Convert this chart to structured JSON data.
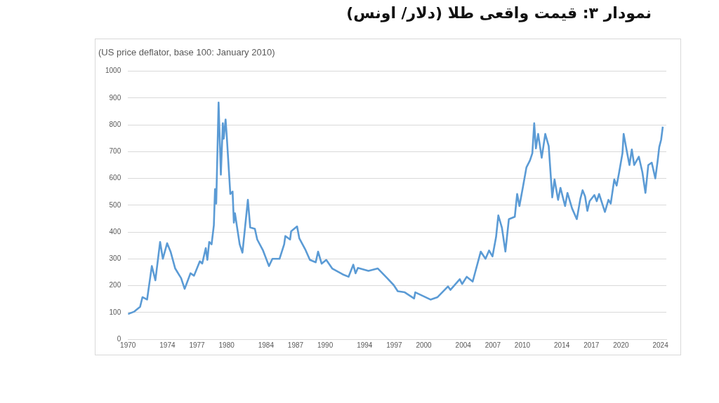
{
  "chart_data": {
    "type": "line",
    "title": "نمودار ۳: قیمت واقعی طلا (دلار/ اونس)",
    "subtitle": "(US price deflator, base 100: January 2010)",
    "series": [
      {
        "color": "#5b9bd5",
        "x": [
          1970.0,
          1970.64,
          1971.23,
          1971.47,
          1971.94,
          1972.42,
          1972.78,
          1973.26,
          1973.54,
          1973.97,
          1974.32,
          1974.79,
          1975.39,
          1975.75,
          1976.34,
          1976.7,
          1977.29,
          1977.53,
          1977.89,
          1978.05,
          1978.24,
          1978.48,
          1978.71,
          1978.83,
          1978.95,
          1979.19,
          1979.42,
          1979.62,
          1979.71,
          1979.9,
          1980.02,
          1980.38,
          1980.61,
          1980.74,
          1980.85,
          1981.33,
          1981.61,
          1981.85,
          1982.16,
          1982.4,
          1982.87,
          1983.11,
          1983.7,
          1984.3,
          1984.65,
          1985.37,
          1985.84,
          1985.96,
          1986.44,
          1986.55,
          1987.15,
          1987.38,
          1987.97,
          1988.45,
          1989.04,
          1989.28,
          1989.64,
          1990.11,
          1990.71,
          1991.78,
          1992.37,
          1992.85,
          1993.08,
          1993.32,
          1994.39,
          1995.34,
          1996.29,
          1996.95,
          1997.36,
          1998.07,
          1999.02,
          1999.14,
          2000.68,
          2001.4,
          2002.46,
          2002.7,
          2003.65,
          2003.89,
          2004.36,
          2004.96,
          2005.78,
          2006.26,
          2006.62,
          2006.97,
          2007.33,
          2007.56,
          2007.92,
          2008.28,
          2008.63,
          2009.23,
          2009.47,
          2009.7,
          2010.06,
          2010.41,
          2010.77,
          2011.01,
          2011.2,
          2011.37,
          2011.6,
          2011.96,
          2012.32,
          2012.67,
          2013.03,
          2013.26,
          2013.62,
          2013.86,
          2014.33,
          2014.57,
          2015.04,
          2015.52,
          2015.88,
          2016.11,
          2016.36,
          2016.59,
          2016.82,
          2017.3,
          2017.54,
          2017.78,
          2018.37,
          2018.73,
          2018.96,
          2019.32,
          2019.56,
          2019.79,
          2020.15,
          2020.27,
          2020.63,
          2020.86,
          2021.1,
          2021.34,
          2021.81,
          2022.17,
          2022.48,
          2022.77,
          2023.12,
          2023.48,
          2023.71,
          2023.88,
          2024.07,
          2024.24
        ],
        "values": [
          94,
          103,
          121,
          157,
          148,
          273,
          220,
          363,
          300,
          358,
          327,
          264,
          228,
          188,
          246,
          237,
          291,
          282,
          340,
          296,
          363,
          354,
          425,
          560,
          506,
          883,
          614,
          806,
          748,
          820,
          757,
          542,
          551,
          435,
          470,
          354,
          323,
          408,
          520,
          417,
          412,
          372,
          331,
          273,
          300,
          300,
          354,
          385,
          372,
          403,
          421,
          376,
          336,
          296,
          287,
          327,
          282,
          296,
          264,
          242,
          233,
          278,
          246,
          266,
          255,
          264,
          228,
          202,
          179,
          175,
          152,
          175,
          148,
          157,
          197,
          184,
          224,
          206,
          233,
          215,
          327,
          300,
          331,
          309,
          381,
          462,
          417,
          327,
          448,
          457,
          542,
          497,
          569,
          641,
          667,
          694,
          806,
          712,
          766,
          677,
          766,
          721,
          529,
          596,
          520,
          565,
          497,
          546,
          488,
          448,
          524,
          556,
          533,
          479,
          515,
          538,
          515,
          542,
          475,
          520,
          506,
          596,
          573,
          618,
          694,
          766,
          694,
          650,
          708,
          650,
          681,
          623,
          546,
          650,
          659,
          600,
          663,
          717,
          744,
          793
        ]
      }
    ],
    "xlim": [
      1970,
      2024.6
    ],
    "xticks": [
      1970,
      1974,
      1977,
      1980,
      1984,
      1987,
      1990,
      1994,
      1997,
      2000,
      2004,
      2007,
      2010,
      2014,
      2017,
      2020,
      2024
    ],
    "ylim": [
      0,
      1000
    ],
    "yticks": [
      0,
      100,
      200,
      300,
      400,
      500,
      600,
      700,
      800,
      900,
      1000
    ],
    "grid": "y",
    "legend": false,
    "marker": "none",
    "line_style": "solid"
  }
}
